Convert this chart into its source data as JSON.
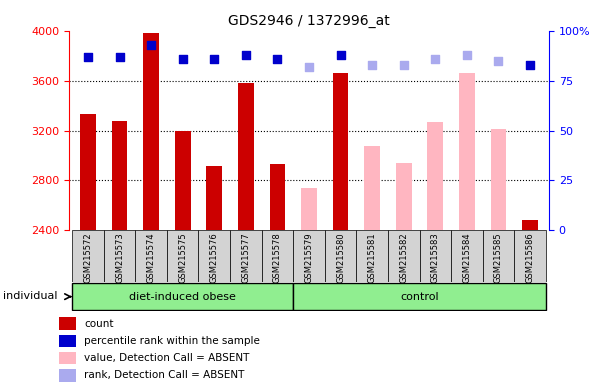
{
  "title": "GDS2946 / 1372996_at",
  "samples": [
    "GSM215572",
    "GSM215573",
    "GSM215574",
    "GSM215575",
    "GSM215576",
    "GSM215577",
    "GSM215578",
    "GSM215579",
    "GSM215580",
    "GSM215581",
    "GSM215582",
    "GSM215583",
    "GSM215584",
    "GSM215585",
    "GSM215586"
  ],
  "bar_values": [
    3330,
    3280,
    3980,
    3200,
    2920,
    3580,
    2930,
    null,
    3660,
    null,
    null,
    null,
    null,
    null,
    2480
  ],
  "bar_absent_values": [
    null,
    null,
    null,
    null,
    null,
    null,
    null,
    2740,
    null,
    3080,
    2940,
    3270,
    3660,
    3210,
    null
  ],
  "dot_values": [
    87,
    87,
    93,
    86,
    86,
    88,
    86,
    null,
    88,
    null,
    null,
    null,
    null,
    null,
    83
  ],
  "dot_absent_values": [
    null,
    null,
    null,
    null,
    null,
    null,
    null,
    82,
    null,
    83,
    83,
    86,
    88,
    85,
    null
  ],
  "group_info": [
    {
      "label": "diet-induced obese",
      "start": 0,
      "end": 6,
      "color": "#90EE90"
    },
    {
      "label": "control",
      "start": 7,
      "end": 14,
      "color": "#90EE90"
    }
  ],
  "bar_color": "#CC0000",
  "bar_absent_color": "#FFB6C1",
  "dot_color": "#0000CC",
  "dot_absent_color": "#AAAAEE",
  "ylim_left": [
    2400,
    4000
  ],
  "ylim_right": [
    0,
    100
  ],
  "yticks_left": [
    2400,
    2800,
    3200,
    3600,
    4000
  ],
  "yticks_right": [
    0,
    25,
    50,
    75,
    100
  ],
  "grid_lines": [
    2800,
    3200,
    3600
  ],
  "background_color": "#D3D3D3",
  "legend_items": [
    {
      "label": "count",
      "color": "#CC0000"
    },
    {
      "label": "percentile rank within the sample",
      "color": "#0000CC"
    },
    {
      "label": "value, Detection Call = ABSENT",
      "color": "#FFB6C1"
    },
    {
      "label": "rank, Detection Call = ABSENT",
      "color": "#AAAAEE"
    }
  ]
}
